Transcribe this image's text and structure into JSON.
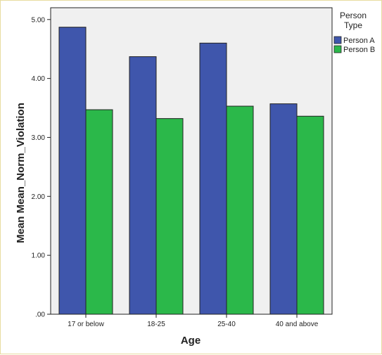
{
  "chart_data": {
    "type": "bar",
    "categories": [
      "17 or below",
      "18-25",
      "25-40",
      "40 and above"
    ],
    "series": [
      {
        "name": "Person A",
        "color": "#3f56ac",
        "values": [
          4.87,
          4.37,
          4.6,
          3.57
        ]
      },
      {
        "name": "Person B",
        "color": "#2bb84a",
        "values": [
          3.47,
          3.32,
          3.53,
          3.36
        ]
      }
    ],
    "xlabel": "Age",
    "ylabel": "Mean Mean_Norm_Violation",
    "ylim": [
      0,
      5.2
    ],
    "yticks": [
      0,
      1,
      2,
      3,
      4,
      5
    ],
    "ytick_labels": [
      ".00",
      "1.00",
      "2.00",
      "3.00",
      "4.00",
      "5.00"
    ],
    "legend_title_lines": [
      "Person",
      "Type"
    ],
    "legend_position": "right",
    "plot_background": "#f0f0f0",
    "grid": false
  }
}
